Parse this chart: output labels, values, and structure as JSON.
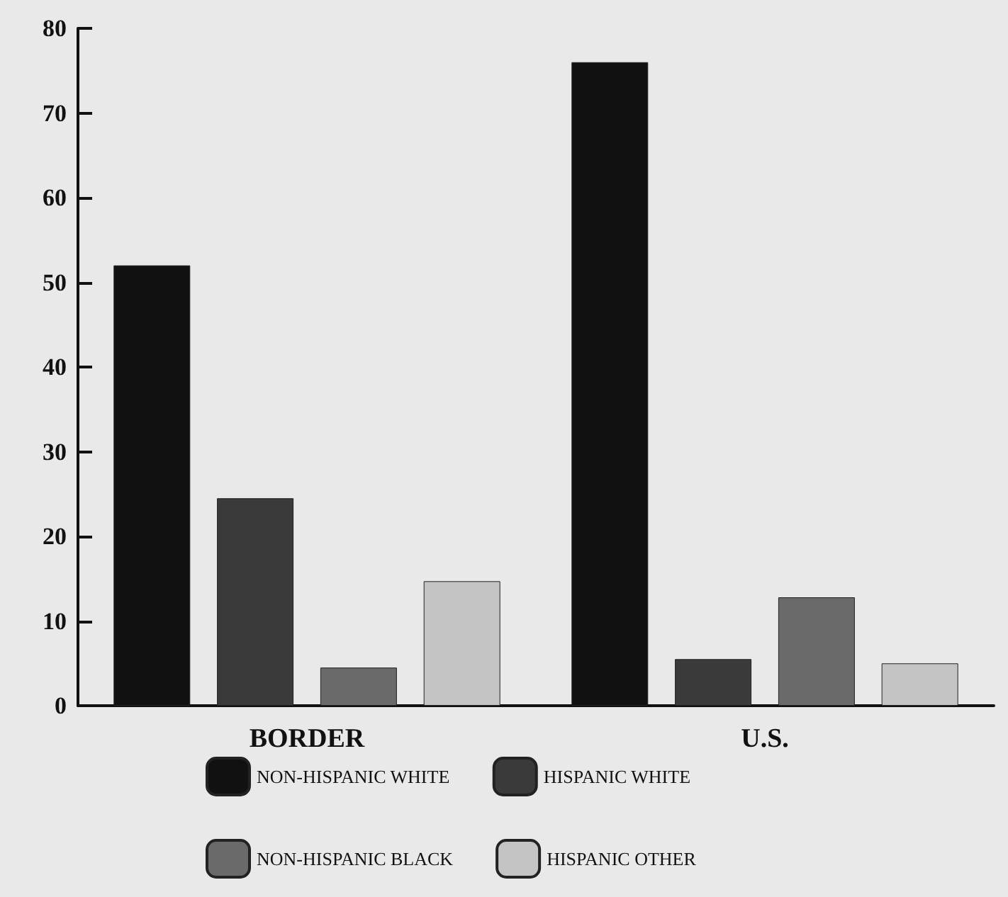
{
  "chart_data": {
    "type": "bar",
    "categories": [
      "BORDER",
      "U.S."
    ],
    "series": [
      {
        "name": "NON-HISPANIC WHITE",
        "color": "#111111",
        "values": [
          52,
          76
        ]
      },
      {
        "name": "HISPANIC WHITE",
        "color": "#3a3a3a",
        "values": [
          24.5,
          5.5
        ]
      },
      {
        "name": "NON-HISPANIC BLACK",
        "color": "#6a6a6a",
        "values": [
          4.5,
          12.8
        ]
      },
      {
        "name": "HISPANIC OTHER",
        "color": "#c4c4c4",
        "values": [
          14.7,
          5
        ]
      }
    ],
    "ylim": [
      0,
      80
    ],
    "yticks": [
      0,
      10,
      20,
      30,
      40,
      50,
      60,
      70,
      80
    ],
    "grid": false,
    "legend": "bottom"
  }
}
